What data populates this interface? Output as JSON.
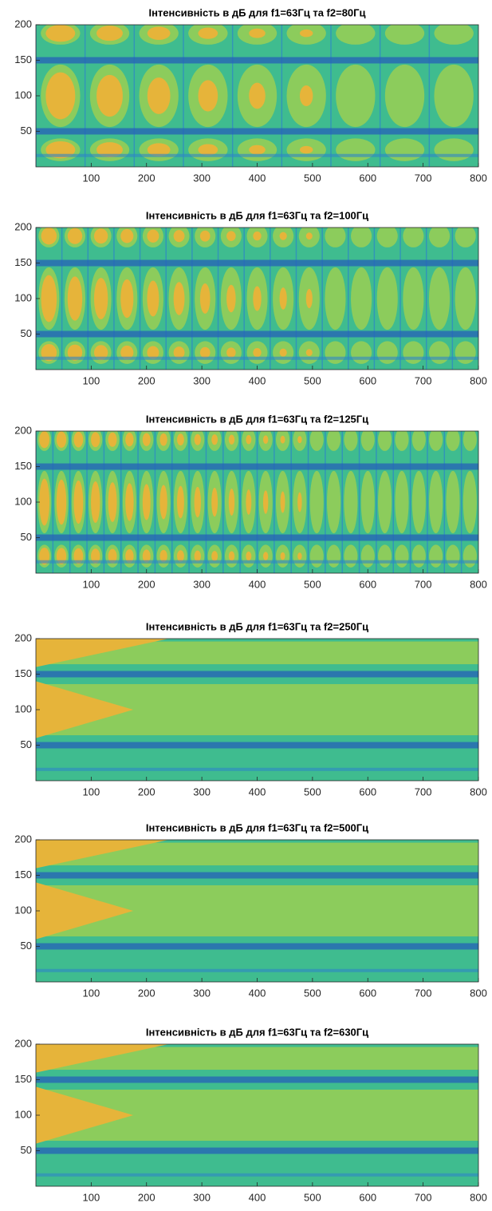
{
  "chart_data": [
    {
      "type": "contour",
      "title": "Інтенсивність в дБ для f1=63Гц та f2=80Гц",
      "xlim": [
        0,
        800
      ],
      "ylim": [
        0,
        200
      ],
      "xticks": [
        100,
        200,
        300,
        400,
        500,
        600,
        700,
        800
      ],
      "yticks": [
        50,
        100,
        150,
        200
      ]
    },
    {
      "type": "contour",
      "title": "Інтенсивність в дБ для f1=63Гц та f2=100Гц",
      "xlim": [
        0,
        800
      ],
      "ylim": [
        0,
        200
      ],
      "xticks": [
        100,
        200,
        300,
        400,
        500,
        600,
        700,
        800
      ],
      "yticks": [
        50,
        100,
        150,
        200
      ]
    },
    {
      "type": "contour",
      "title": "Інтенсивність в дБ для f1=63Гц та f2=125Гц",
      "xlim": [
        0,
        800
      ],
      "ylim": [
        0,
        200
      ],
      "xticks": [
        100,
        200,
        300,
        400,
        500,
        600,
        700,
        800
      ],
      "yticks": [
        50,
        100,
        150,
        200
      ]
    },
    {
      "type": "contour",
      "title": "Інтенсивність в дБ для f1=63Гц та f2=250Гц",
      "xlim": [
        0,
        800
      ],
      "ylim": [
        0,
        200
      ],
      "xticks": [
        100,
        200,
        300,
        400,
        500,
        600,
        700,
        800
      ],
      "yticks": [
        50,
        100,
        150,
        200
      ]
    },
    {
      "type": "contour",
      "title": "Інтенсивність в дБ для f1=63Гц та f2=500Гц",
      "xlim": [
        0,
        800
      ],
      "ylim": [
        0,
        200
      ],
      "xticks": [
        100,
        200,
        300,
        400,
        500,
        600,
        700,
        800
      ],
      "yticks": [
        50,
        100,
        150,
        200
      ]
    },
    {
      "type": "contour",
      "title": "Інтенсивність в дБ для f1=63Гц та f2=630Гц",
      "xlim": [
        0,
        800
      ],
      "ylim": [
        0,
        200
      ],
      "xticks": [
        100,
        200,
        300,
        400,
        500,
        600,
        700,
        800
      ],
      "yticks": [
        50,
        100,
        150,
        200
      ]
    }
  ]
}
